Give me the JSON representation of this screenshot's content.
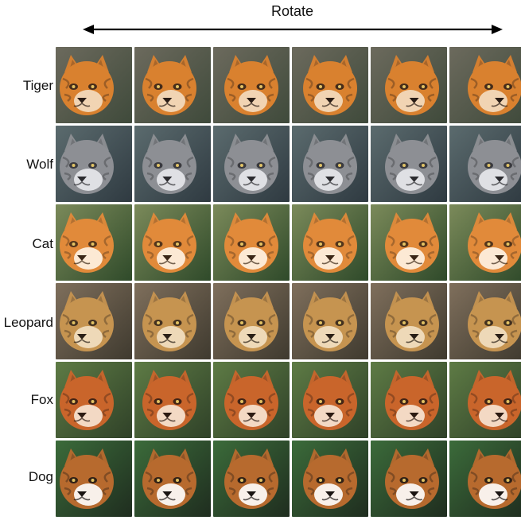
{
  "header": {
    "title": "Rotate"
  },
  "rows": [
    {
      "label": "Tiger",
      "icon": "tiger-face",
      "colors": {
        "fur": "#d9812f",
        "light": "#f3ddc2",
        "dark": "#2a1d16",
        "bg1": "#6c6a5d",
        "bg2": "#3f4a3b"
      }
    },
    {
      "label": "Wolf",
      "icon": "wolf-face",
      "colors": {
        "fur": "#8d8f94",
        "light": "#e8e9ec",
        "dark": "#2b2b2f",
        "bg1": "#5b6b6e",
        "bg2": "#2f3a41"
      }
    },
    {
      "label": "Cat",
      "icon": "cat-face",
      "colors": {
        "fur": "#e18a3a",
        "light": "#fff3e6",
        "dark": "#3a2616",
        "bg1": "#7b8a5a",
        "bg2": "#2f4a2a"
      }
    },
    {
      "label": "Leopard",
      "icon": "leopard-face",
      "colors": {
        "fur": "#c69450",
        "light": "#f2e0c3",
        "dark": "#2a1f16",
        "bg1": "#7f6f5c",
        "bg2": "#3f3a2f"
      }
    },
    {
      "label": "Fox",
      "icon": "fox-face",
      "colors": {
        "fur": "#c9652b",
        "light": "#f7e6d5",
        "dark": "#2b1a12",
        "bg1": "#5e7b45",
        "bg2": "#2f4128"
      }
    },
    {
      "label": "Dog",
      "icon": "dog-face",
      "colors": {
        "fur": "#b76a2e",
        "light": "#ffffff",
        "dark": "#1a1412",
        "bg1": "#3b6b3a",
        "bg2": "#1f2d1f"
      }
    }
  ],
  "columns": 6
}
